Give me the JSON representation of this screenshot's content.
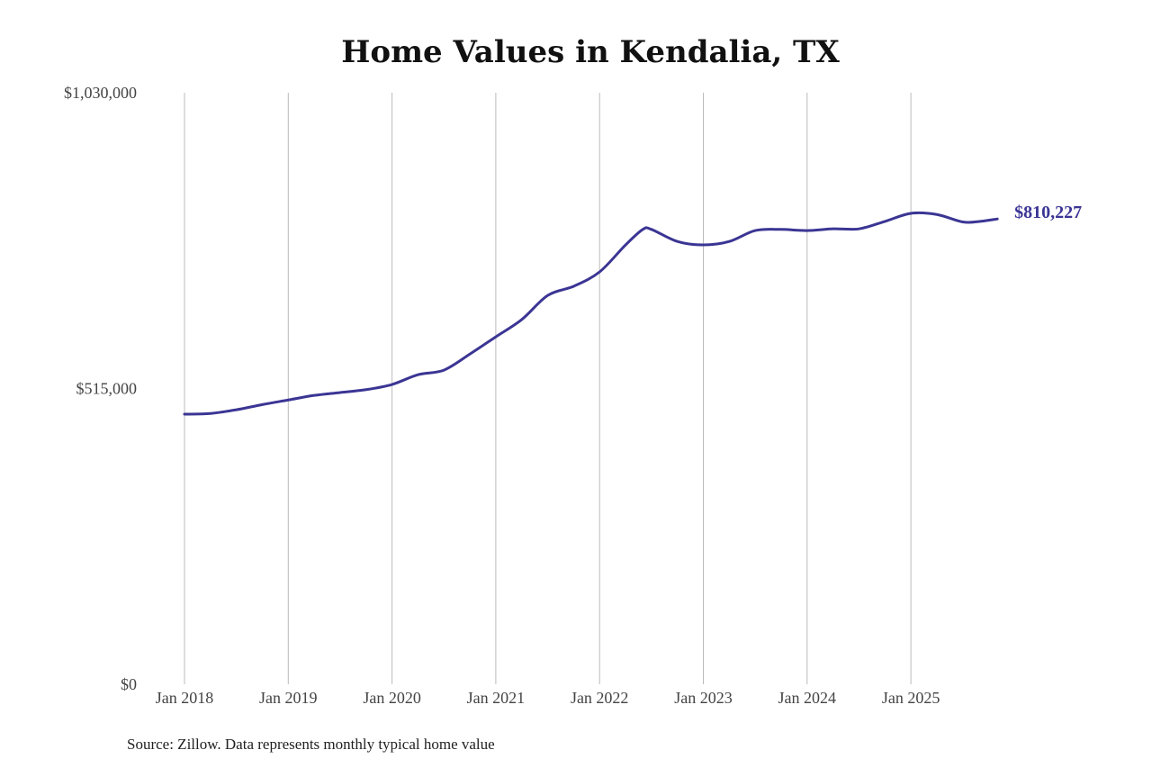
{
  "chart_data": {
    "type": "line",
    "title": "Home Values in Kendalia, TX",
    "xlabel": "",
    "ylabel": "",
    "ylim": [
      0,
      1030000
    ],
    "y_ticks": [
      {
        "value": 0,
        "label": "$0"
      },
      {
        "value": 515000,
        "label": "$515,000"
      },
      {
        "value": 1030000,
        "label": "$1,030,000"
      }
    ],
    "x_ticks": [
      {
        "value": "2018-01",
        "label": "Jan 2018"
      },
      {
        "value": "2019-01",
        "label": "Jan 2019"
      },
      {
        "value": "2020-01",
        "label": "Jan 2020"
      },
      {
        "value": "2021-01",
        "label": "Jan 2021"
      },
      {
        "value": "2022-01",
        "label": "Jan 2022"
      },
      {
        "value": "2023-01",
        "label": "Jan 2023"
      },
      {
        "value": "2024-01",
        "label": "Jan 2024"
      },
      {
        "value": "2025-01",
        "label": "Jan 2025"
      }
    ],
    "grid": "vertical",
    "line_color": "#3b3594",
    "end_label": "$810,227",
    "series": [
      {
        "x": [
          "2018-01",
          "2018-04",
          "2018-07",
          "2018-10",
          "2019-01",
          "2019-04",
          "2019-07",
          "2019-10",
          "2020-01",
          "2020-04",
          "2020-07",
          "2020-10",
          "2021-01",
          "2021-04",
          "2021-07",
          "2021-10",
          "2022-01",
          "2022-04",
          "2022-06",
          "2022-07",
          "2022-10",
          "2023-01",
          "2023-04",
          "2023-07",
          "2023-10",
          "2024-01",
          "2024-04",
          "2024-07",
          "2024-10",
          "2025-01",
          "2025-04",
          "2025-07",
          "2025-09",
          "2025-11"
        ],
        "y": [
          470300,
          471500,
          478000,
          487000,
          495000,
          503000,
          508000,
          513000,
          522000,
          539000,
          547000,
          575000,
          605000,
          635000,
          677000,
          693000,
          718000,
          765000,
          792000,
          792000,
          771000,
          765000,
          771000,
          790000,
          792000,
          790000,
          793000,
          793000,
          806000,
          820000,
          818000,
          805000,
          806000,
          810227
        ]
      }
    ]
  },
  "source": "Source: Zillow. Data represents monthly typical home value"
}
